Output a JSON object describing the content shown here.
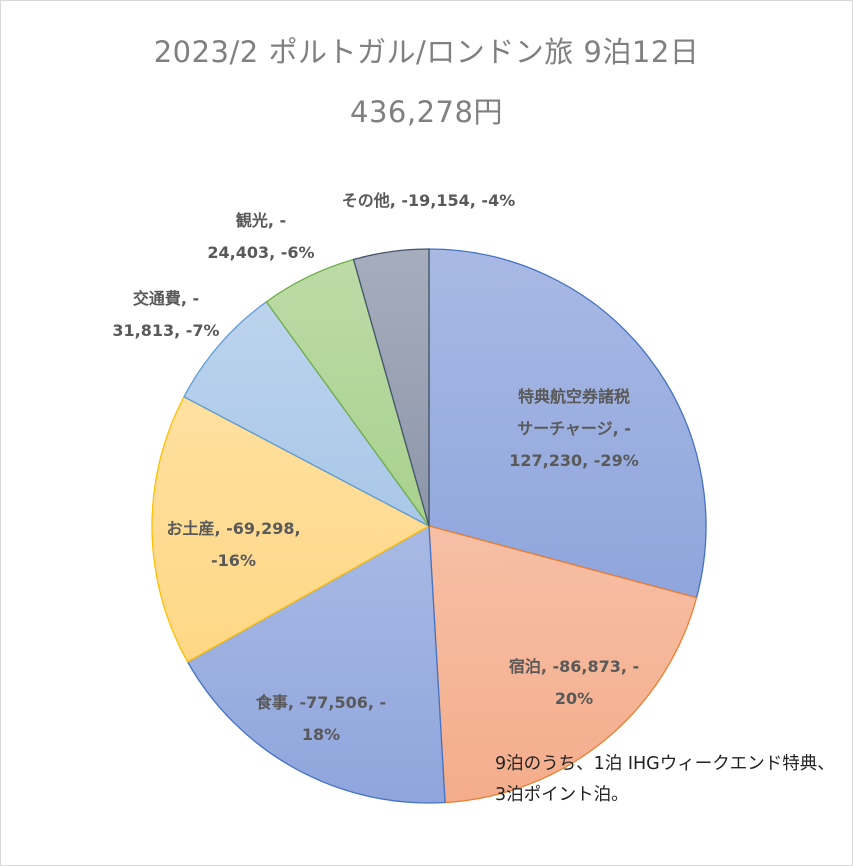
{
  "chart_data": {
    "type": "pie",
    "title": "2023/2 ポルトガル/ロンドン旅 9泊12日",
    "subtitle": "436,278円",
    "slices": [
      {
        "category": "特典航空券諸税サーチャージ",
        "value": -127230,
        "percent": "-29%",
        "label": "特典航空券諸税\nサーチャージ, -\n127,230, -29%",
        "color": "#8fa5dc",
        "stroke": "#4472c4"
      },
      {
        "category": "宿泊",
        "value": -86873,
        "percent": "20%",
        "label": "宿泊, -86,873, -\n20%",
        "color": "#f4ad8c",
        "stroke": "#ed7d31"
      },
      {
        "category": "食事",
        "value": -77506,
        "percent": "18%",
        "label": "食事, -77,506, -\n18%",
        "color": "#8fa5dc",
        "stroke": "#4472c4"
      },
      {
        "category": "お土産",
        "value": -69298,
        "percent": "-16%",
        "label": "お土産, -69,298,\n-16%",
        "color": "#ffd785",
        "stroke": "#ffc000"
      },
      {
        "category": "交通費",
        "value": -31813,
        "percent": "-7%",
        "label": "交通費, -\n31,813, -7%",
        "color": "#a9c7e8",
        "stroke": "#5b9bd5"
      },
      {
        "category": "観光",
        "value": -24403,
        "percent": "-6%",
        "label": "観光, -\n24,403, -6%",
        "color": "#a9d18e",
        "stroke": "#70ad47"
      },
      {
        "category": "その他",
        "value": -19154,
        "percent": "-4%",
        "label": "その他, -19,154, -4%",
        "color": "#8d96aa",
        "stroke": "#44546a"
      }
    ],
    "annotation": "9泊のうち、1泊 IHGウィークエンド特典、3泊ポイント泊。"
  }
}
